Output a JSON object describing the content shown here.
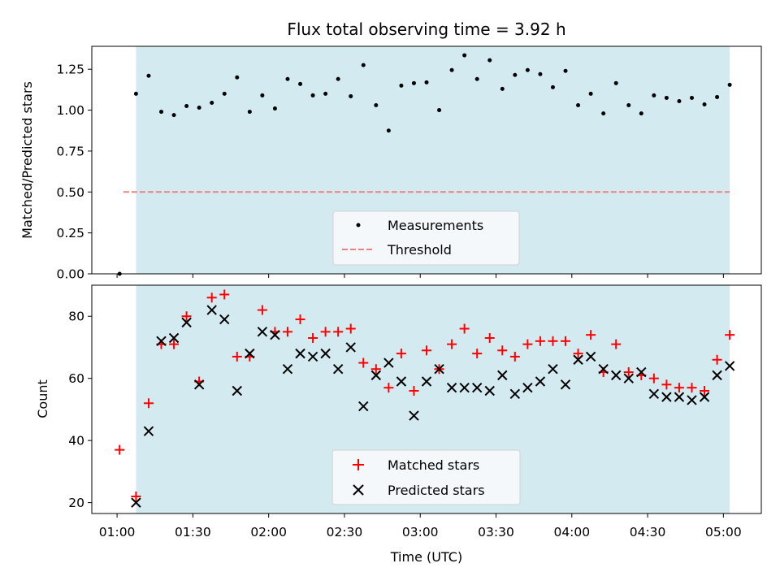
{
  "chart_data": {
    "title": "Flux total observing time = 3.92 h",
    "xlabel": "Time (UTC)",
    "x_tick_labels": [
      "01:00",
      "01:30",
      "02:00",
      "02:30",
      "03:00",
      "03:30",
      "04:00",
      "04:30",
      "05:00"
    ],
    "x_ticks_minutes": [
      60,
      90,
      120,
      150,
      180,
      210,
      240,
      270,
      300
    ],
    "xlim_minutes": [
      50,
      315
    ],
    "shaded_span_minutes": [
      67.5,
      302.5
    ],
    "shade_color": "#d4eaf1",
    "x_minutes": [
      61,
      67.5,
      72.5,
      77.5,
      82.5,
      87.5,
      92.5,
      97.5,
      102.5,
      107.5,
      112.5,
      117.5,
      122.5,
      127.5,
      132.5,
      137.5,
      142.5,
      147.5,
      152.5,
      157.5,
      162.5,
      167.5,
      172.5,
      177.5,
      182.5,
      187.5,
      192.5,
      197.5,
      202.5,
      207.5,
      212.5,
      217.5,
      222.5,
      227.5,
      232.5,
      237.5,
      242.5,
      247.5,
      252.5,
      257.5,
      262.5,
      267.5,
      272.5,
      277.5,
      282.5,
      287.5,
      292.5,
      297.5,
      302.5
    ],
    "panels": [
      {
        "type": "scatter",
        "ylabel": "Matched/Predicted stars",
        "ylim": [
          0,
          1.39
        ],
        "y_ticks": [
          0.0,
          0.25,
          0.5,
          0.75,
          1.0,
          1.25
        ],
        "y_tick_labels": [
          "0.00",
          "0.25",
          "0.50",
          "0.75",
          "1.00",
          "1.25"
        ],
        "legend_position": "lower-center",
        "series": [
          {
            "name": "Measurements",
            "marker": "dot",
            "color": "#000000",
            "values": [
              0.0,
              1.1,
              1.21,
              0.99,
              0.97,
              1.025,
              1.015,
              1.045,
              1.1,
              1.2,
              0.99,
              1.09,
              1.01,
              1.19,
              1.16,
              1.09,
              1.1,
              1.19,
              1.085,
              1.275,
              1.03,
              0.875,
              1.15,
              1.165,
              1.17,
              1.0,
              1.245,
              1.335,
              1.19,
              1.305,
              1.13,
              1.215,
              1.245,
              1.22,
              1.14,
              1.24,
              1.03,
              1.1,
              0.98,
              1.165,
              1.03,
              0.98,
              1.09,
              1.075,
              1.055,
              1.075,
              1.035,
              1.08,
              1.155
            ]
          }
        ],
        "threshold": {
          "name": "Threshold",
          "value": 0.5,
          "x_start_minutes": 62.5,
          "x_end_minutes": 302.5,
          "color": "#f08080"
        }
      },
      {
        "type": "scatter",
        "ylabel": "Count",
        "ylim": [
          16.5,
          90
        ],
        "y_ticks": [
          20,
          40,
          60,
          80
        ],
        "y_tick_labels": [
          "20",
          "40",
          "60",
          "80"
        ],
        "legend_position": "lower-center",
        "series": [
          {
            "name": "Matched stars",
            "marker": "plus",
            "color": "#ff0000",
            "values": [
              37,
              22,
              52,
              71,
              71,
              80,
              59,
              86,
              87,
              67,
              67,
              82,
              75,
              75,
              79,
              73,
              75,
              75,
              76,
              65,
              63,
              57,
              68,
              56,
              69,
              63,
              71,
              76,
              68,
              73,
              69,
              67,
              71,
              72,
              72,
              72,
              68,
              74,
              62,
              71,
              62,
              61,
              60,
              58,
              57,
              57,
              56,
              66,
              74
            ]
          },
          {
            "name": "Predicted stars",
            "marker": "x",
            "color": "#000000",
            "values": [
              null,
              20,
              43,
              72,
              73,
              78,
              58,
              82,
              79,
              56,
              68,
              75,
              74,
              63,
              68,
              67,
              68,
              63,
              70,
              51,
              61,
              65,
              59,
              48,
              59,
              63,
              57,
              57,
              57,
              56,
              61,
              55,
              57,
              59,
              63,
              58,
              66,
              67,
              63,
              61,
              60,
              62,
              55,
              54,
              54,
              53,
              54,
              61,
              64
            ]
          }
        ]
      }
    ]
  }
}
